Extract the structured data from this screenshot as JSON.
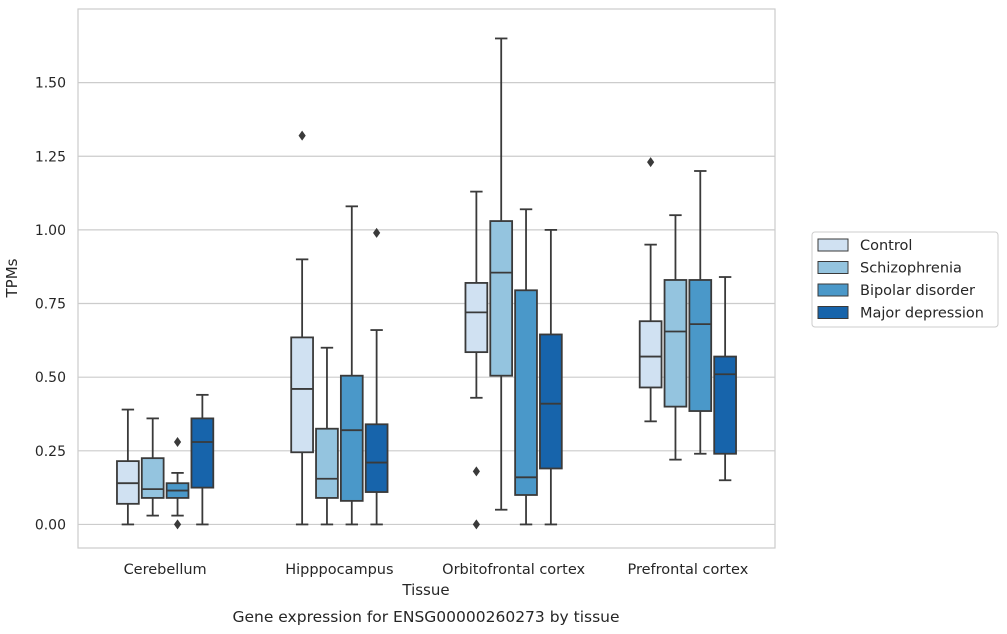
{
  "chart_data": {
    "type": "box",
    "title": "",
    "caption": "Gene expression for ENSG00000260273 by tissue",
    "xlabel": "Tissue",
    "ylabel": "TPMs",
    "ylim": [
      -0.08,
      1.75
    ],
    "yticks": [
      0.0,
      0.25,
      0.5,
      0.75,
      1.0,
      1.25,
      1.5
    ],
    "ytick_labels": [
      "0.00",
      "0.25",
      "0.50",
      "0.75",
      "1.00",
      "1.25",
      "1.50"
    ],
    "grid": "horizontal",
    "legend_position": "right",
    "categories": [
      "Cerebellum",
      "Hipppocampus",
      "Orbitofrontal cortex",
      "Prefrontal cortex"
    ],
    "series": [
      {
        "name": "Control",
        "color": "#d0e1f2",
        "boxes": [
          {
            "whisker_low": 0.0,
            "q1": 0.07,
            "median": 0.14,
            "q3": 0.215,
            "whisker_high": 0.39,
            "outliers": []
          },
          {
            "whisker_low": 0.0,
            "q1": 0.245,
            "median": 0.46,
            "q3": 0.635,
            "whisker_high": 0.9,
            "outliers": [
              1.32
            ]
          },
          {
            "whisker_low": 0.43,
            "q1": 0.585,
            "median": 0.72,
            "q3": 0.82,
            "whisker_high": 1.13,
            "outliers": [
              0.18,
              0.0
            ]
          },
          {
            "whisker_low": 0.35,
            "q1": 0.465,
            "median": 0.57,
            "q3": 0.69,
            "whisker_high": 0.95,
            "outliers": [
              1.23
            ]
          }
        ]
      },
      {
        "name": "Schizophrenia",
        "color": "#94c4df",
        "boxes": [
          {
            "whisker_low": 0.03,
            "q1": 0.09,
            "median": 0.12,
            "q3": 0.225,
            "whisker_high": 0.36,
            "outliers": []
          },
          {
            "whisker_low": 0.0,
            "q1": 0.09,
            "median": 0.155,
            "q3": 0.325,
            "whisker_high": 0.6,
            "outliers": []
          },
          {
            "whisker_low": 0.05,
            "q1": 0.505,
            "median": 0.855,
            "q3": 1.03,
            "whisker_high": 1.65,
            "outliers": []
          },
          {
            "whisker_low": 0.22,
            "q1": 0.4,
            "median": 0.655,
            "q3": 0.83,
            "whisker_high": 1.05,
            "outliers": []
          }
        ]
      },
      {
        "name": "Bipolar disorder",
        "color": "#4a98c9",
        "boxes": [
          {
            "whisker_low": 0.03,
            "q1": 0.09,
            "median": 0.115,
            "q3": 0.14,
            "whisker_high": 0.175,
            "outliers": [
              0.28,
              0.0
            ]
          },
          {
            "whisker_low": 0.0,
            "q1": 0.08,
            "median": 0.32,
            "q3": 0.505,
            "whisker_high": 1.08,
            "outliers": []
          },
          {
            "whisker_low": 0.0,
            "q1": 0.1,
            "median": 0.16,
            "q3": 0.795,
            "whisker_high": 1.07,
            "outliers": []
          },
          {
            "whisker_low": 0.24,
            "q1": 0.385,
            "median": 0.68,
            "q3": 0.83,
            "whisker_high": 1.2,
            "outliers": []
          }
        ]
      },
      {
        "name": "Major depression",
        "color": "#1764ab",
        "boxes": [
          {
            "whisker_low": 0.0,
            "q1": 0.125,
            "median": 0.28,
            "q3": 0.36,
            "whisker_high": 0.44,
            "outliers": []
          },
          {
            "whisker_low": 0.0,
            "q1": 0.11,
            "median": 0.21,
            "q3": 0.34,
            "whisker_high": 0.66,
            "outliers": [
              0.99
            ]
          },
          {
            "whisker_low": 0.0,
            "q1": 0.19,
            "median": 0.41,
            "q3": 0.645,
            "whisker_high": 1.0,
            "outliers": []
          },
          {
            "whisker_low": 0.15,
            "q1": 0.24,
            "median": 0.51,
            "q3": 0.57,
            "whisker_high": 0.84,
            "outliers": []
          }
        ]
      }
    ]
  }
}
